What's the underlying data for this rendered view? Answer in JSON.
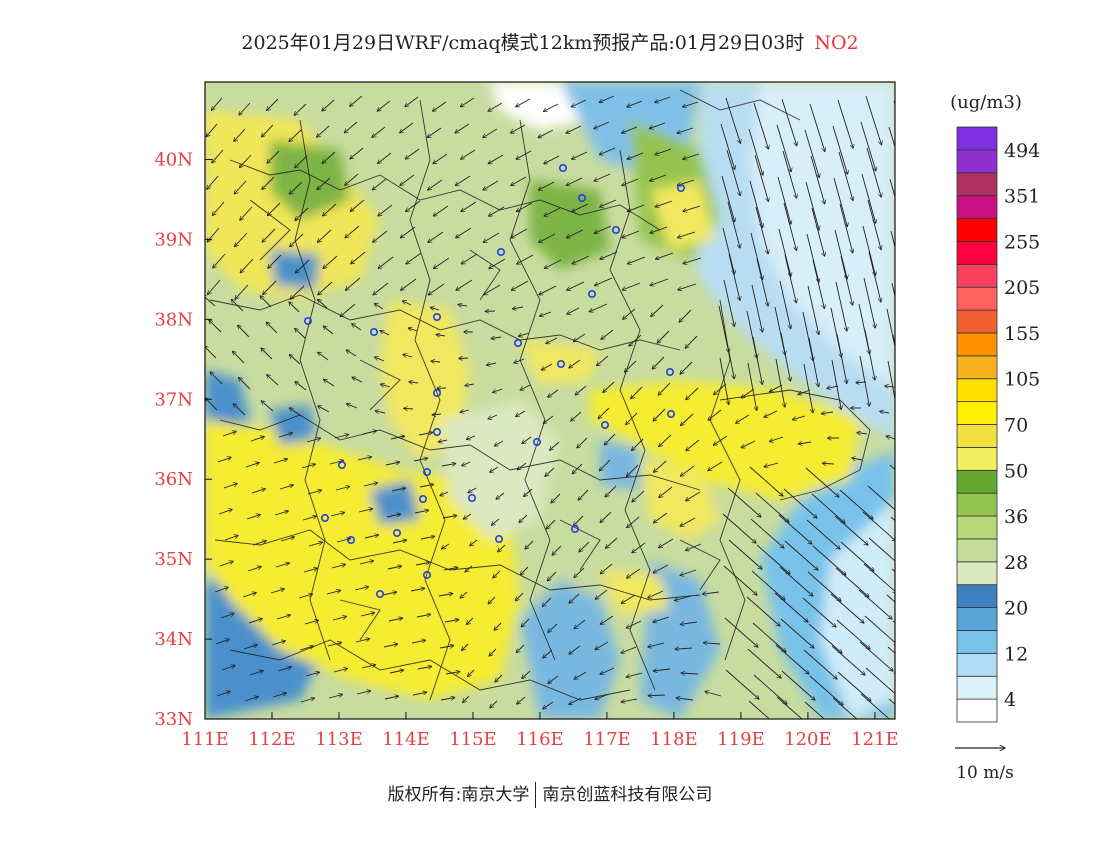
{
  "title": {
    "main": "2025年01月29日WRF/cmaq模式12km预报产品:01月29日03时",
    "pollutant": "NO2"
  },
  "map": {
    "lon_labels": [
      "111E",
      "112E",
      "113E",
      "114E",
      "115E",
      "116E",
      "117E",
      "118E",
      "119E",
      "120E",
      "121E"
    ],
    "lat_labels": [
      "33N",
      "34N",
      "35N",
      "36N",
      "37N",
      "38N",
      "39N",
      "40N"
    ],
    "lon_range": [
      111,
      121.3
    ],
    "lat_range": [
      33,
      40.97
    ],
    "label_color": "#e84040"
  },
  "colorbar": {
    "unit": "(ug/m3)",
    "colors": [
      "#ffffff",
      "#dcf0fa",
      "#b0dcf4",
      "#78c2ea",
      "#5aa6d8",
      "#3c80c0",
      "#dce8c0",
      "#c4dc98",
      "#b8d878",
      "#94c450",
      "#64a830",
      "#f0f060",
      "#f0e040",
      "#fff000",
      "#ffe000",
      "#f8b020",
      "#ff9000",
      "#f06030",
      "#ff6060",
      "#f84060",
      "#ff0040",
      "#ff0000",
      "#c81080",
      "#b03060",
      "#9030d0",
      "#8030e0"
    ],
    "labels": [
      "4",
      "12",
      "20",
      "28",
      "36",
      "50",
      "70",
      "105",
      "155",
      "205",
      "255",
      "351",
      "494"
    ]
  },
  "wind_legend": {
    "label": "10 m/s"
  },
  "footer": {
    "left": "版权所有:南京大学",
    "right": "南京创蓝科技有限公司"
  }
}
